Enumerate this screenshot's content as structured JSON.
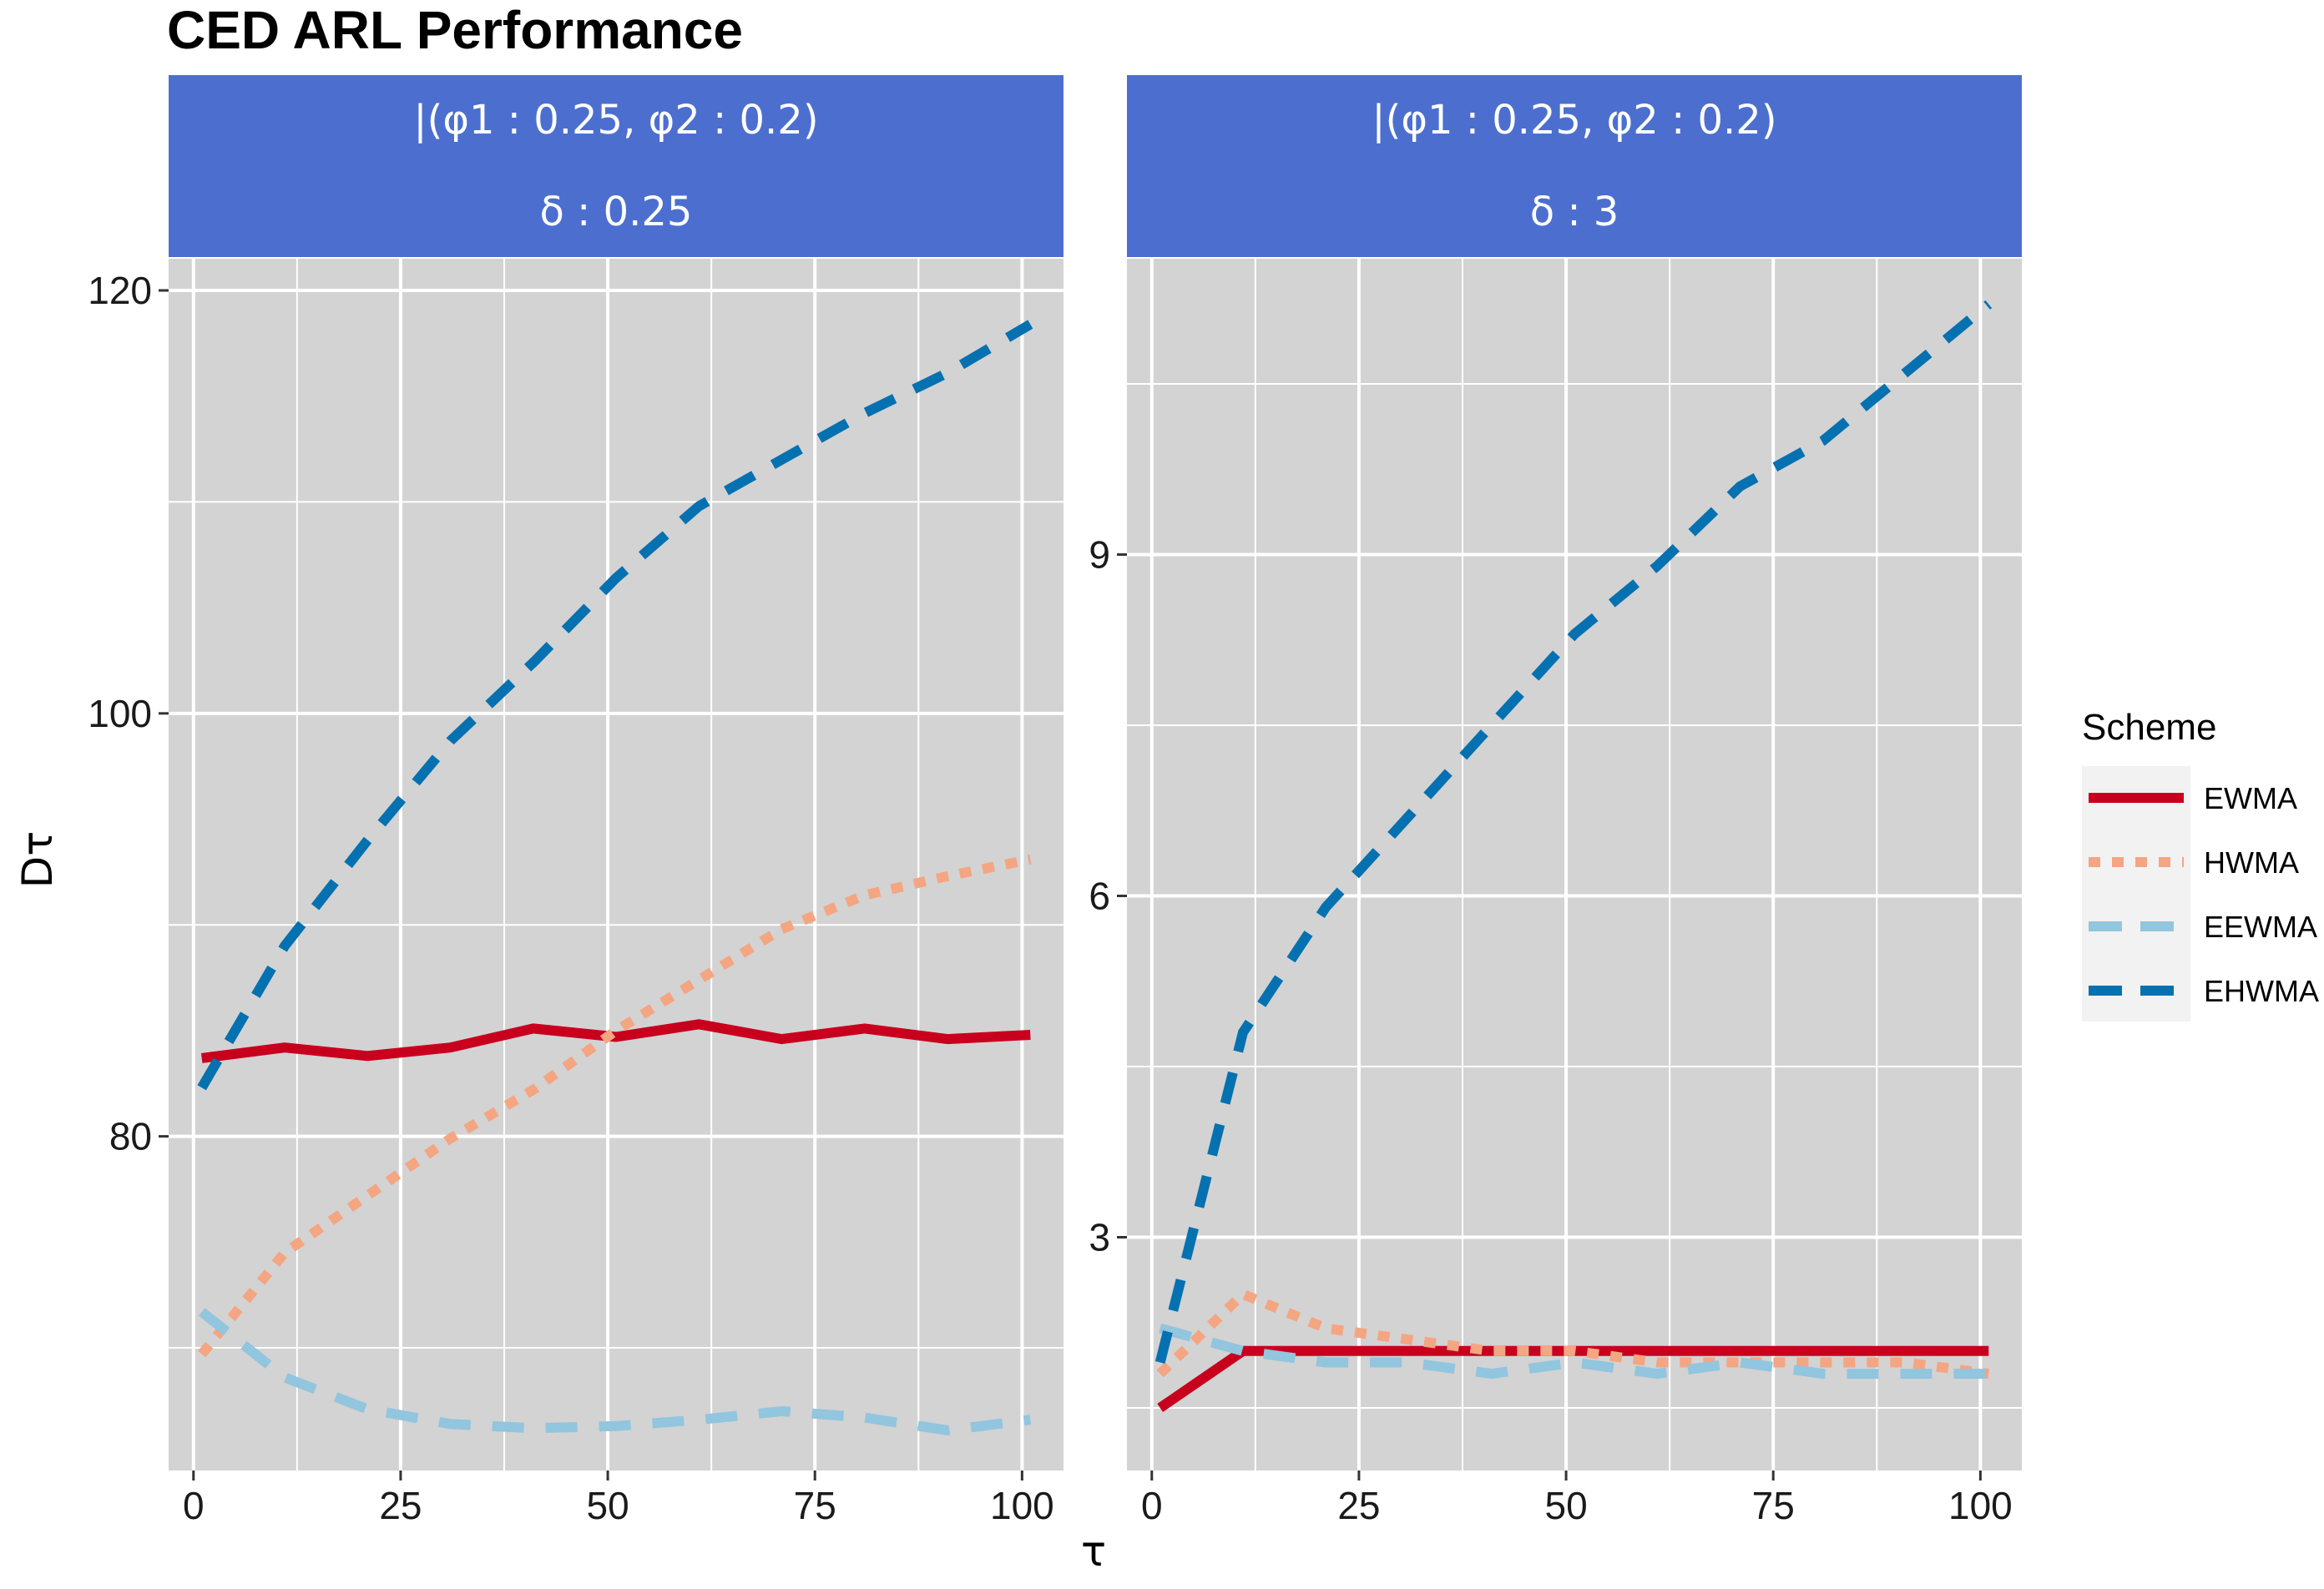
{
  "title": "CED ARL Performance",
  "xlabel": "τ",
  "ylabel": "Dτ",
  "legend": {
    "title": "Scheme",
    "placement": "right",
    "items": [
      {
        "name": "EWMA",
        "color": "#C8001E",
        "dash": "solid"
      },
      {
        "name": "HWMA",
        "color": "#F4A582",
        "dash": "dotted"
      },
      {
        "name": "EEWMA",
        "color": "#92C5DE",
        "dash": "dashed"
      },
      {
        "name": "EHWMA",
        "color": "#0571B0",
        "dash": "dashed"
      }
    ]
  },
  "colors": {
    "strip": "#4C6FCF",
    "panel_bg": "#D3D3D3",
    "grid": "#FFFFFF"
  },
  "chart_data": [
    {
      "type": "line",
      "strip": [
        "|(φ1 : 0.25, φ2 : 0.2)",
        "δ : 0.25"
      ],
      "x": [
        1,
        11,
        21,
        31,
        41,
        51,
        61,
        71,
        81,
        91,
        101
      ],
      "xticks": [
        0,
        25,
        50,
        75,
        100
      ],
      "xlim": [
        -3,
        105
      ],
      "yticks": [
        80,
        100,
        120
      ],
      "ylim": [
        64.2,
        121.5
      ],
      "grid": true,
      "series": [
        {
          "name": "EWMA",
          "values": [
            83.7,
            84.2,
            83.8,
            84.2,
            85.1,
            84.7,
            85.3,
            84.6,
            85.1,
            84.6,
            84.8
          ]
        },
        {
          "name": "HWMA",
          "values": [
            69.7,
            74.5,
            77.2,
            79.9,
            82.2,
            85.0,
            87.4,
            89.8,
            91.4,
            92.3,
            93.1
          ]
        },
        {
          "name": "EEWMA",
          "values": [
            71.7,
            68.6,
            67.1,
            66.4,
            66.2,
            66.3,
            66.6,
            67.0,
            66.7,
            66.1,
            66.6
          ]
        },
        {
          "name": "EHWMA",
          "values": [
            82.3,
            89.0,
            94.0,
            98.7,
            102.4,
            106.4,
            109.8,
            112.0,
            114.2,
            116.1,
            118.4
          ]
        }
      ]
    },
    {
      "type": "line",
      "strip": [
        "|(φ1 : 0.25, φ2 : 0.2)",
        "δ : 3"
      ],
      "x": [
        1,
        11,
        21,
        31,
        41,
        51,
        61,
        71,
        81,
        91,
        101
      ],
      "xticks": [
        0,
        25,
        50,
        75,
        100
      ],
      "xlim": [
        -3,
        105
      ],
      "yticks": [
        3,
        6,
        9
      ],
      "ylim": [
        0.95,
        11.6
      ],
      "grid": true,
      "series": [
        {
          "name": "EWMA",
          "values": [
            1.5,
            2.0,
            2.0,
            2.0,
            2.0,
            2.0,
            2.0,
            2.0,
            2.0,
            2.0,
            2.0
          ]
        },
        {
          "name": "HWMA",
          "values": [
            1.8,
            2.5,
            2.2,
            2.1,
            2.0,
            2.0,
            1.9,
            1.9,
            1.9,
            1.9,
            1.8
          ]
        },
        {
          "name": "EEWMA",
          "values": [
            2.2,
            2.0,
            1.9,
            1.9,
            1.8,
            1.9,
            1.8,
            1.9,
            1.8,
            1.8,
            1.8
          ]
        },
        {
          "name": "EHWMA",
          "values": [
            1.9,
            4.8,
            5.9,
            6.7,
            7.5,
            8.3,
            8.9,
            9.6,
            10.0,
            10.6,
            11.2
          ]
        }
      ]
    }
  ]
}
